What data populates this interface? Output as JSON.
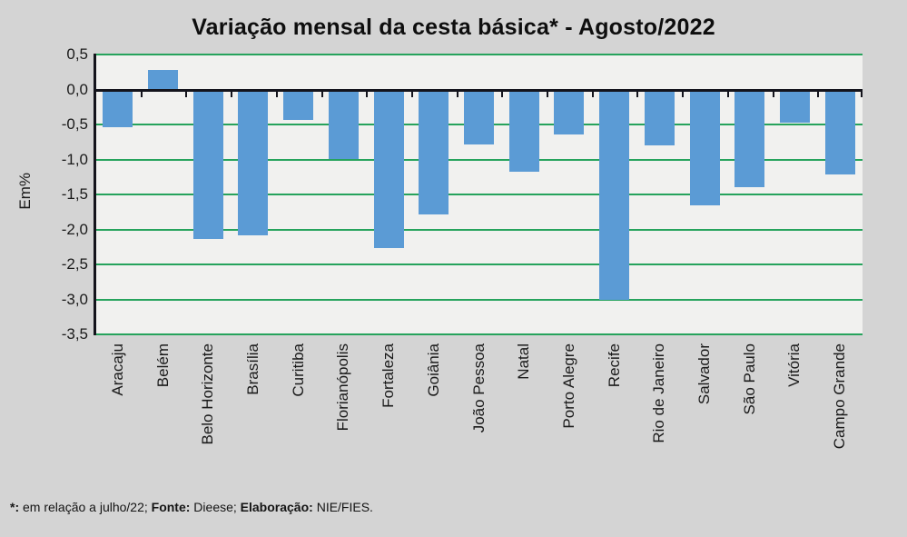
{
  "page": {
    "background": "#d4d4d4"
  },
  "chart": {
    "title": "Variação mensal da cesta básica* - Agosto/2022"
  },
  "chart_data": {
    "type": "bar",
    "title": "Variação mensal da cesta básica* - Agosto/2022",
    "xlabel": "",
    "ylabel": "Em%",
    "ylim": [
      -3.5,
      0.5
    ],
    "y_ticks": [
      0.5,
      0.0,
      -0.5,
      -1.0,
      -1.5,
      -2.0,
      -2.5,
      -3.0,
      -3.5
    ],
    "y_tick_labels": [
      "0,5",
      "0,0",
      "-0,5",
      "-1,0",
      "-1,5",
      "-2,0",
      "-2,5",
      "-3,0",
      "-3,5"
    ],
    "grid": true,
    "legend": false,
    "categories": [
      "Aracaju",
      "Belém",
      "Belo Horizonte",
      "Brasília",
      "Curitiba",
      "Florianópolis",
      "Fortaleza",
      "Goiânia",
      "João Pessoa",
      "Natal",
      "Porto Alegre",
      "Recife",
      "Rio de Janeiro",
      "Salvador",
      "São Paulo",
      "Vitória",
      "Campo Grande"
    ],
    "values": [
      -0.54,
      0.28,
      -2.13,
      -2.09,
      -0.44,
      -0.99,
      -2.26,
      -1.79,
      -0.78,
      -1.17,
      -0.64,
      -3.0,
      -0.8,
      -1.65,
      -1.4,
      -0.48,
      -1.22
    ],
    "colors": {
      "bar": "#5b9bd5",
      "gridline": "#26a35c",
      "zero_line": "#14141c",
      "plot_background": "#f1f1ef",
      "page_background": "#d4d4d4"
    }
  },
  "footnote": {
    "asterisk_label": "*:",
    "text1": " em relação a julho/22; ",
    "fonte_label": "Fonte:",
    "text2": " Dieese; ",
    "elaboracao_label": "Elaboração:",
    "text3": " NIE/FIES."
  }
}
